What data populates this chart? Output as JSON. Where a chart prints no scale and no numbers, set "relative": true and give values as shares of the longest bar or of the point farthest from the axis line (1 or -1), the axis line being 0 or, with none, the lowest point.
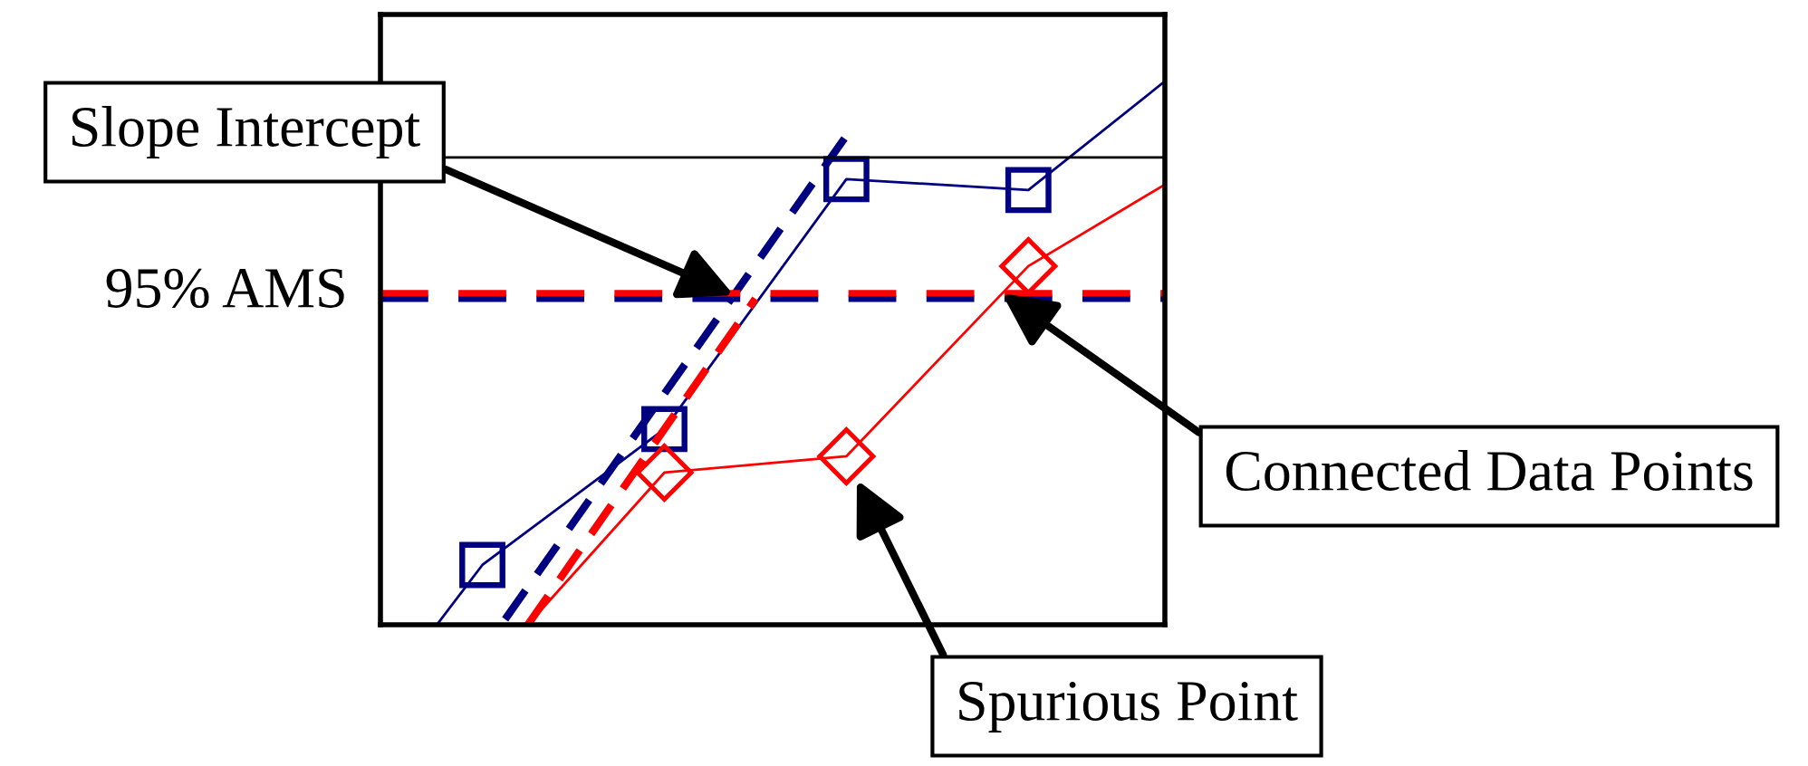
{
  "chart_data": {
    "type": "line",
    "relative": true,
    "categories": [
      null,
      null,
      null,
      null,
      null,
      null,
      null,
      null,
      null,
      null,
      null,
      null,
      null,
      null,
      null,
      null,
      null,
      null,
      null,
      null,
      null,
      null,
      null,
      null,
      null,
      null,
      null,
      null,
      null,
      null,
      null,
      null,
      null,
      null,
      null
    ],
    "series": [
      {
        "color": "#000080",
        "marker": "square",
        "values": [
          null,
          null,
          0,
          null,
          0.11,
          null,
          null,
          null,
          null,
          null,
          null,
          null,
          0.36,
          null,
          null,
          null,
          null,
          null,
          null,
          null,
          0.82,
          null,
          null,
          null,
          null,
          null,
          null,
          null,
          0.8,
          null,
          null,
          null,
          null,
          null,
          1
        ]
      },
      {
        "color": "#ff0000",
        "marker": "diamond",
        "values": [
          null,
          null,
          null,
          null,
          null,
          null,
          0,
          null,
          null,
          null,
          null,
          null,
          0.28,
          null,
          null,
          null,
          null,
          null,
          null,
          null,
          0.31,
          null,
          null,
          null,
          null,
          null,
          null,
          null,
          0.66,
          null,
          null,
          null,
          null,
          null,
          0.81
        ]
      },
      {
        "color": "#000080",
        "line_style": "dashed",
        "values": [
          null,
          null,
          null,
          null,
          null,
          0.01,
          null,
          null,
          null,
          null,
          null,
          null,
          null,
          null,
          null,
          null,
          null,
          null,
          null,
          null,
          0.9,
          null,
          null,
          null,
          null,
          null,
          null,
          null,
          null,
          null,
          null,
          null,
          null,
          null,
          null
        ]
      },
      {
        "color": "#ff0000",
        "line_style": "dashed",
        "values": [
          null,
          null,
          null,
          null,
          null,
          null,
          0,
          null,
          null,
          null,
          null,
          null,
          null,
          null,
          null,
          null,
          0.6,
          null,
          null,
          null,
          null,
          null,
          null,
          null,
          null,
          null,
          null,
          null,
          null,
          null,
          null,
          null,
          null,
          null,
          null
        ]
      }
    ],
    "ref_lines": [
      {
        "axis": "y",
        "value": 0.86,
        "color": "#000000"
      },
      {
        "axis": "y",
        "value": 0.6,
        "color": "#000080",
        "line_style": "dashed"
      },
      {
        "axis": "y",
        "value": 0.61,
        "color": "#ff0000",
        "line_style": "dashed",
        "label": "95% AMS"
      }
    ],
    "annotations": [
      "Slope Intercept",
      "Connected Data Points",
      "Spurious Point"
    ]
  }
}
